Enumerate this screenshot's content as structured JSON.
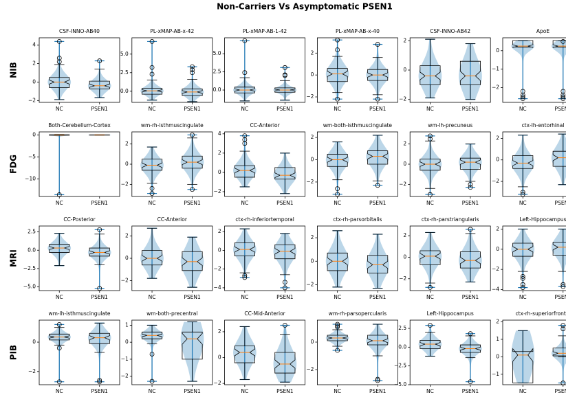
{
  "title": "Non-Carriers Vs Asymptomatic PSEN1",
  "row_labels": [
    "NIB",
    "FDG",
    "MRI",
    "PIB"
  ],
  "chart_data": [
    {
      "type": "violin-box",
      "title": "CSF-INNO-AB40",
      "categories": [
        "NC",
        "PSEN1"
      ],
      "ylim": [
        -2.2,
        4.8
      ],
      "yticks": [
        {
          "value": -2,
          "label": "−2"
        },
        0,
        2,
        4
      ],
      "boxes": [
        {
          "whislo": -1.9,
          "q1": -0.6,
          "med": 0,
          "q3": 0.5,
          "whishi": 1.9,
          "fliers": [
            2.2,
            2.6,
            4.4
          ]
        },
        {
          "whislo": -1.7,
          "q1": -0.75,
          "med": -0.4,
          "q3": 0.1,
          "whishi": 1.4,
          "fliers": [
            2.3
          ]
        }
      ]
    },
    {
      "type": "violin-box",
      "title": "PL-xMAP-AB-x-42",
      "categories": [
        "NC",
        "PSEN1"
      ],
      "ylim": [
        -1.5,
        7.2
      ],
      "yticks": [
        {
          "value": 0,
          "label": "0.0"
        },
        2.5,
        {
          "value": 5,
          "label": "5.0"
        }
      ],
      "boxes": [
        {
          "whislo": -1.2,
          "q1": -0.4,
          "med": 0.05,
          "q3": 0.4,
          "whishi": 1.5,
          "fliers": [
            2.3,
            3.2,
            6.7
          ]
        },
        {
          "whislo": -1.4,
          "q1": -0.6,
          "med": -0.1,
          "q3": 0.3,
          "whishi": 1.6,
          "fliers": [
            2.5,
            2.9,
            3.3
          ]
        }
      ]
    },
    {
      "type": "violin-box",
      "title": "PL-xMAP-AB-1-42",
      "categories": [
        "NC",
        "PSEN1"
      ],
      "ylim": [
        -1.7,
        7.2
      ],
      "yticks": [
        {
          "value": 0,
          "label": "0.0"
        },
        2.5,
        {
          "value": 5,
          "label": "5.0"
        }
      ],
      "boxes": [
        {
          "whislo": -1.5,
          "q1": -0.4,
          "med": 0,
          "q3": 0.4,
          "whishi": 1.7,
          "fliers": [
            2.4,
            6.8
          ]
        },
        {
          "whislo": -1.4,
          "q1": -0.3,
          "med": 0,
          "q3": 0.3,
          "whishi": 1.3,
          "fliers": [
            2.0,
            2.1,
            3.1
          ]
        }
      ]
    },
    {
      "type": "violin-box",
      "title": "PL-xMAP-AB-x-40",
      "categories": [
        "NC",
        "PSEN1"
      ],
      "ylim": [
        -2.5,
        3.4
      ],
      "yticks": [
        {
          "value": -2,
          "label": "−2"
        },
        0,
        2
      ],
      "boxes": [
        {
          "whislo": -1.6,
          "q1": -0.6,
          "med": 0.1,
          "q3": 0.6,
          "whishi": 1.7,
          "fliers": [
            -2.2,
            2.3,
            3.2
          ]
        },
        {
          "whislo": -1.8,
          "q1": -0.5,
          "med": 0,
          "q3": 0.5,
          "whishi": 1.6,
          "fliers": [
            -2.2,
            2.8
          ]
        }
      ]
    },
    {
      "type": "violin-box",
      "title": "CSF-INNO-AB42",
      "categories": [
        "NC",
        "PSEN1"
      ],
      "ylim": [
        -2.2,
        2.2
      ],
      "yticks": [
        {
          "value": -2,
          "label": "−2"
        },
        0,
        2
      ],
      "boxes": [
        {
          "whislo": -1.9,
          "q1": -1.0,
          "med": -0.4,
          "q3": 0.3,
          "whishi": 2.1,
          "fliers": []
        },
        {
          "whislo": -2.0,
          "q1": -1.0,
          "med": -0.4,
          "q3": 0.6,
          "whishi": 1.8,
          "fliers": []
        }
      ]
    },
    {
      "type": "violin-box",
      "title": "ApoE",
      "categories": [
        "NC",
        "PSEN1"
      ],
      "ylim": [
        -2.8,
        0.7
      ],
      "yticks": [
        {
          "value": -2,
          "label": "−2"
        },
        {
          "value": -1,
          "label": "−1"
        },
        0
      ],
      "boxes": [
        {
          "whislo": 0.2,
          "q1": 0.2,
          "med": 0.25,
          "q3": 0.55,
          "whishi": 0.55,
          "fliers": [
            -2.2,
            -2.4,
            -2.5,
            -2.6
          ]
        },
        {
          "whislo": 0.2,
          "q1": 0.2,
          "med": 0.25,
          "q3": 0.55,
          "whishi": 0.55,
          "fliers": [
            -2.2,
            -2.4,
            -2.5,
            -2.6,
            0.5
          ]
        }
      ]
    },
    {
      "type": "violin-box",
      "title": "Both-Cerebellum-Cortex",
      "categories": [
        "NC",
        "PSEN1"
      ],
      "ylim": [
        -14,
        0.7
      ],
      "yticks": [
        {
          "value": -10,
          "label": "−10"
        },
        {
          "value": -5,
          "label": "−5"
        },
        0
      ],
      "boxes": [
        {
          "whislo": -0.1,
          "q1": -0.05,
          "med": 0,
          "q3": 0.05,
          "whishi": 0.1,
          "fliers": [
            -13.6
          ]
        },
        {
          "whislo": -0.05,
          "q1": -0.03,
          "med": 0,
          "q3": 0.03,
          "whishi": 0.05,
          "fliers": []
        }
      ]
    },
    {
      "type": "violin-box",
      "title": "wm-rh-isthmuscingulate",
      "categories": [
        "NC",
        "PSEN1"
      ],
      "ylim": [
        -3.2,
        3.2
      ],
      "yticks": [
        {
          "value": -2,
          "label": "−2"
        },
        0,
        2
      ],
      "boxes": [
        {
          "whislo": -1.9,
          "q1": -0.6,
          "med": -0.1,
          "q3": 0.5,
          "whishi": 1.7,
          "fliers": [
            -2.4,
            -2.9
          ]
        },
        {
          "whislo": -2.0,
          "q1": -0.4,
          "med": 0.2,
          "q3": 0.8,
          "whishi": 2.6,
          "fliers": [
            -2.5,
            2.9
          ]
        }
      ]
    },
    {
      "type": "violin-box",
      "title": "CC-Anterior",
      "categories": [
        "NC",
        "PSEN1"
      ],
      "ylim": [
        -2.5,
        4.2
      ],
      "yticks": [
        {
          "value": -2,
          "label": "−2"
        },
        0,
        2,
        4
      ],
      "boxes": [
        {
          "whislo": -1.5,
          "q1": -0.5,
          "med": 0.2,
          "q3": 0.7,
          "whishi": 2.2,
          "fliers": [
            3.0,
            3.4,
            3.8
          ]
        },
        {
          "whislo": -2.2,
          "q1": -0.7,
          "med": -0.3,
          "q3": 0.5,
          "whishi": 2.0,
          "fliers": []
        }
      ]
    },
    {
      "type": "violin-box",
      "title": "wm-both-isthmuscingulate",
      "categories": [
        "NC",
        "PSEN1"
      ],
      "ylim": [
        -3.3,
        2.5
      ],
      "yticks": [
        {
          "value": -2,
          "label": "−2"
        },
        0,
        2
      ],
      "boxes": [
        {
          "whislo": -1.8,
          "q1": -0.6,
          "med": 0,
          "q3": 0.5,
          "whishi": 1.6,
          "fliers": [
            -2.6,
            -3.1
          ]
        },
        {
          "whislo": -1.9,
          "q1": -0.4,
          "med": 0.3,
          "q3": 0.8,
          "whishi": 2.2,
          "fliers": [
            -2.3
          ]
        }
      ]
    },
    {
      "type": "violin-box",
      "title": "wm-lh-precuneus",
      "categories": [
        "NC",
        "PSEN1"
      ],
      "ylim": [
        -3.2,
        3.2
      ],
      "yticks": [
        {
          "value": -2,
          "label": "−2"
        },
        0,
        2
      ],
      "boxes": [
        {
          "whislo": -2.4,
          "q1": -0.6,
          "med": 0,
          "q3": 0.5,
          "whishi": 2.3,
          "fliers": [
            2.5,
            2.8,
            -3.0
          ]
        },
        {
          "whislo": -1.7,
          "q1": -0.5,
          "med": 0.2,
          "q3": 0.6,
          "whishi": 2.0,
          "fliers": [
            -2.0,
            -2.3
          ]
        }
      ]
    },
    {
      "type": "violin-box",
      "title": "ctx-lh-entorhinal",
      "categories": [
        "NC",
        "PSEN1"
      ],
      "ylim": [
        -3.4,
        2.6
      ],
      "yticks": [
        {
          "value": -2,
          "label": "−2"
        },
        0,
        2
      ],
      "boxes": [
        {
          "whislo": -2.5,
          "q1": -0.8,
          "med": -0.3,
          "q3": 0.4,
          "whishi": 2.3,
          "fliers": [
            -3.0,
            -3.2
          ]
        },
        {
          "whislo": -2.3,
          "q1": -0.6,
          "med": 0.2,
          "q3": 0.8,
          "whishi": 2.4,
          "fliers": []
        }
      ]
    },
    {
      "type": "violin-box",
      "title": "CC-Posterior",
      "categories": [
        "NC",
        "PSEN1"
      ],
      "ylim": [
        -5.5,
        3.3
      ],
      "yticks": [
        {
          "value": -5,
          "label": "−5.0"
        },
        {
          "value": -2.5,
          "label": "−2.5"
        },
        {
          "value": 0,
          "label": "0.0"
        },
        2.5
      ],
      "boxes": [
        {
          "whislo": -2.1,
          "q1": -0.3,
          "med": 0.3,
          "q3": 0.8,
          "whishi": 2.3,
          "fliers": []
        },
        {
          "whislo": -2.0,
          "q1": -0.8,
          "med": -0.3,
          "q3": 0.3,
          "whishi": 2.2,
          "fliers": [
            -5.2,
            2.8
          ]
        }
      ]
    },
    {
      "type": "violin-box",
      "title": "CC-Anterior",
      "categories": [
        "NC",
        "PSEN1"
      ],
      "ylim": [
        -2.9,
        2.9
      ],
      "yticks": [
        {
          "value": -2,
          "label": "−2"
        },
        0,
        2
      ],
      "boxes": [
        {
          "whislo": -1.8,
          "q1": -0.6,
          "med": 0,
          "q3": 0.7,
          "whishi": 2.7,
          "fliers": []
        },
        {
          "whislo": -2.6,
          "q1": -1.1,
          "med": -0.3,
          "q3": 0.6,
          "whishi": 1.9,
          "fliers": []
        }
      ]
    },
    {
      "type": "violin-box",
      "title": "ctx-rh-inferiortemporal",
      "categories": [
        "NC",
        "PSEN1"
      ],
      "ylim": [
        -4.3,
        2.6
      ],
      "yticks": [
        {
          "value": -4,
          "label": "−4"
        },
        {
          "value": -2,
          "label": "−2"
        },
        0,
        2
      ],
      "boxes": [
        {
          "whislo": -2.4,
          "q1": -0.6,
          "med": 0.1,
          "q3": 0.8,
          "whishi": 2.3,
          "fliers": [
            -2.7,
            -2.9
          ]
        },
        {
          "whislo": -2.6,
          "q1": -0.9,
          "med": -0.1,
          "q3": 0.6,
          "whishi": 1.8,
          "fliers": [
            -3.4,
            -4.0
          ]
        }
      ]
    },
    {
      "type": "violin-box",
      "title": "ctx-rh-parsorbitalis",
      "categories": [
        "NC",
        "PSEN1"
      ],
      "ylim": [
        -2.5,
        3.0
      ],
      "yticks": [
        {
          "value": -2,
          "label": "−2"
        },
        0,
        2
      ],
      "boxes": [
        {
          "whislo": -2.2,
          "q1": -0.8,
          "med": 0,
          "q3": 0.7,
          "whishi": 2.6,
          "fliers": []
        },
        {
          "whislo": -2.3,
          "q1": -1.0,
          "med": -0.3,
          "q3": 0.5,
          "whishi": 2.3,
          "fliers": []
        }
      ]
    },
    {
      "type": "violin-box",
      "title": "ctx-rh-parstriangularis",
      "categories": [
        "NC",
        "PSEN1"
      ],
      "ylim": [
        -3.1,
        2.9
      ],
      "yticks": [
        {
          "value": -2,
          "label": "−2"
        },
        0,
        2
      ],
      "boxes": [
        {
          "whislo": -2.4,
          "q1": -0.7,
          "med": 0.1,
          "q3": 0.6,
          "whishi": 2.3,
          "fliers": [
            -2.8
          ]
        },
        {
          "whislo": -2.3,
          "q1": -1.0,
          "med": -0.3,
          "q3": 0.5,
          "whishi": 2.2,
          "fliers": [
            2.6
          ]
        }
      ]
    },
    {
      "type": "violin-box",
      "title": "Left-Hippocampus",
      "categories": [
        "NC",
        "PSEN1"
      ],
      "ylim": [
        -4.1,
        2.3
      ],
      "yticks": [
        {
          "value": -4,
          "label": "−4"
        },
        {
          "value": -2,
          "label": "−2"
        },
        0,
        2
      ],
      "boxes": [
        {
          "whislo": -2.2,
          "q1": -0.7,
          "med": 0,
          "q3": 0.6,
          "whishi": 2.0,
          "fliers": [
            -2.7,
            -2.9,
            -3.5,
            -3.8
          ]
        },
        {
          "whislo": -2.2,
          "q1": -0.6,
          "med": 0.2,
          "q3": 0.7,
          "whishi": 2.0,
          "fliers": [
            -3.5,
            -3.7
          ]
        }
      ]
    },
    {
      "type": "violin-box",
      "title": "wm-lh-isthmuscingulate",
      "categories": [
        "NC",
        "PSEN1"
      ],
      "ylim": [
        -2.9,
        1.5
      ],
      "yticks": [
        {
          "value": -2,
          "label": "−2"
        },
        0
      ],
      "boxes": [
        {
          "whislo": -0.2,
          "q1": 0.15,
          "med": 0.35,
          "q3": 0.55,
          "whishi": 1.0,
          "fliers": [
            1.2,
            -0.4,
            -2.7
          ]
        },
        {
          "whislo": -0.7,
          "q1": -0.1,
          "med": 0.3,
          "q3": 0.6,
          "whishi": 1.3,
          "fliers": [
            -2.6,
            -2.7
          ]
        }
      ]
    },
    {
      "type": "violin-box",
      "title": "wm-both-precentral",
      "categories": [
        "NC",
        "PSEN1"
      ],
      "ylim": [
        -2.5,
        1.3
      ],
      "yticks": [
        {
          "value": -2,
          "label": "−2"
        },
        {
          "value": -1,
          "label": "−1"
        },
        0,
        1
      ],
      "boxes": [
        {
          "whislo": -0.1,
          "q1": 0.2,
          "med": 0.4,
          "q3": 0.6,
          "whishi": 1.0,
          "fliers": [
            -0.7,
            -2.3
          ]
        },
        {
          "whislo": -2.3,
          "q1": -1.0,
          "med": 0.2,
          "q3": 0.6,
          "whishi": 1.2,
          "fliers": []
        }
      ]
    },
    {
      "type": "violin-box",
      "title": "CC-Mid-Anterior",
      "categories": [
        "NC",
        "PSEN1"
      ],
      "ylim": [
        -2.1,
        2.9
      ],
      "yticks": [
        {
          "value": -2,
          "label": "−2"
        },
        0,
        2
      ],
      "boxes": [
        {
          "whislo": -1.7,
          "q1": -0.4,
          "med": 0.4,
          "q3": 0.9,
          "whishi": 2.4,
          "fliers": []
        },
        {
          "whislo": -1.9,
          "q1": -1.2,
          "med": -0.5,
          "q3": 0.4,
          "whishi": 1.8,
          "fliers": [
            2.5
          ]
        }
      ]
    },
    {
      "type": "violin-box",
      "title": "wm-rh-parsopercularis",
      "categories": [
        "NC",
        "PSEN1"
      ],
      "ylim": [
        -3.1,
        1.6
      ],
      "yticks": [
        {
          "value": -2,
          "label": "−2"
        },
        0
      ],
      "boxes": [
        {
          "whislo": -0.3,
          "q1": 0.1,
          "med": 0.3,
          "q3": 0.5,
          "whishi": 0.9,
          "fliers": [
            1.1,
            1.2,
            1.3,
            -0.6
          ]
        },
        {
          "whislo": -1.0,
          "q1": -0.2,
          "med": 0.1,
          "q3": 0.5,
          "whishi": 1.3,
          "fliers": [
            -2.7,
            -2.8
          ]
        }
      ]
    },
    {
      "type": "violin-box",
      "title": "Left-Hippocampus",
      "categories": [
        "NC",
        "PSEN1"
      ],
      "ylim": [
        -5,
        3.6
      ],
      "yticks": [
        {
          "value": -5,
          "label": "−5.0"
        },
        {
          "value": -2.5,
          "label": "−2.5"
        },
        {
          "value": 0,
          "label": "0.0"
        },
        2.5
      ],
      "boxes": [
        {
          "whislo": -1.2,
          "q1": -0.2,
          "med": 0.4,
          "q3": 0.9,
          "whishi": 2.0,
          "fliers": [
            2.9
          ]
        },
        {
          "whislo": -1.4,
          "q1": -0.7,
          "med": -0.2,
          "q3": 0.3,
          "whishi": 1.5,
          "fliers": [
            1.8,
            -4.6
          ]
        }
      ]
    },
    {
      "type": "violin-box",
      "title": "ctx-rh-superiorfrontal",
      "categories": [
        "NC",
        "PSEN1"
      ],
      "ylim": [
        -1.6,
        2.1
      ],
      "yticks": [
        {
          "value": -1,
          "label": "−1"
        },
        0,
        1,
        2
      ],
      "boxes": [
        {
          "whislo": -1.5,
          "q1": -1.5,
          "med": 0.1,
          "q3": 0.3,
          "whishi": 1.5,
          "fliers": []
        },
        {
          "whislo": 0.0,
          "q1": 0.05,
          "med": 0.2,
          "q3": 0.5,
          "whishi": 1.2,
          "fliers": [
            1.6,
            1.8,
            -1.5
          ]
        }
      ]
    }
  ]
}
